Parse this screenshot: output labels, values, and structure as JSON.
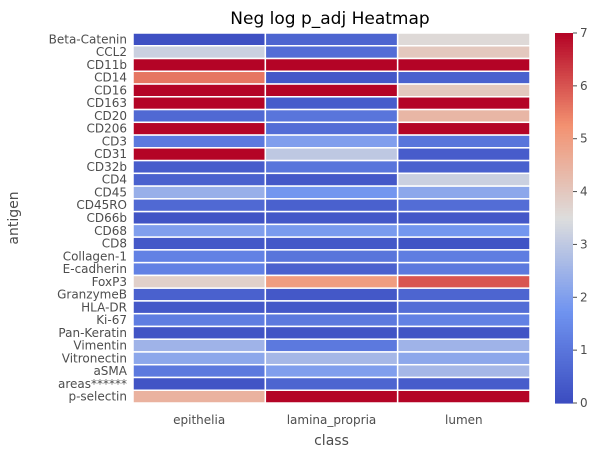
{
  "chart_data": {
    "type": "heatmap",
    "title": "Neg log p_adj Heatmap",
    "xlabel": "class",
    "ylabel": "antigen",
    "columns": [
      "epithelia",
      "lamina_propria",
      "lumen"
    ],
    "rows": [
      "Beta-Catenin",
      "CCL2",
      "CD11b",
      "CD14",
      "CD16",
      "CD163",
      "CD20",
      "CD206",
      "CD3",
      "CD31",
      "CD32b",
      "CD4",
      "CD45",
      "CD45RO",
      "CD66b",
      "CD68",
      "CD8",
      "Collagen-1",
      "E-cadherin",
      "FoxP3",
      "GranzymeB",
      "HLA-DR",
      "Ki-67",
      "Pan-Keratin",
      "Vimentin",
      "Vitronectin",
      "aSMA",
      "areas******",
      "p-selectin"
    ],
    "values": [
      [
        0.1,
        0.6,
        3.6
      ],
      [
        3.2,
        0.8,
        4.0
      ],
      [
        7.0,
        7.0,
        7.0
      ],
      [
        5.6,
        0.3,
        0.5
      ],
      [
        7.0,
        7.0,
        4.0
      ],
      [
        7.0,
        0.4,
        7.0
      ],
      [
        0.7,
        1.0,
        4.4
      ],
      [
        7.0,
        0.8,
        7.0
      ],
      [
        1.1,
        2.0,
        1.0
      ],
      [
        7.0,
        3.0,
        0.4
      ],
      [
        0.4,
        1.0,
        0.5
      ],
      [
        0.5,
        0.3,
        3.2
      ],
      [
        2.4,
        1.8,
        2.2
      ],
      [
        0.7,
        0.5,
        0.8
      ],
      [
        0.2,
        0.3,
        0.3
      ],
      [
        2.0,
        1.9,
        1.8
      ],
      [
        0.3,
        0.3,
        0.2
      ],
      [
        1.3,
        1.0,
        1.2
      ],
      [
        1.3,
        0.5,
        1.1
      ],
      [
        3.8,
        5.0,
        6.0
      ],
      [
        0.5,
        0.3,
        0.6
      ],
      [
        0.3,
        0.3,
        0.8
      ],
      [
        1.2,
        1.1,
        1.3
      ],
      [
        0.2,
        0.2,
        0.2
      ],
      [
        2.5,
        1.1,
        2.5
      ],
      [
        2.2,
        2.6,
        2.2
      ],
      [
        1.1,
        2.0,
        2.6
      ],
      [
        0.2,
        0.6,
        0.4
      ],
      [
        4.5,
        7.0,
        7.0
      ]
    ],
    "zlim": [
      0,
      7
    ],
    "colorbar_ticks": [
      0,
      1,
      2,
      3,
      4,
      5,
      6,
      7
    ],
    "colormap": "coolwarm",
    "colormap_low": "#3b4cc0",
    "colormap_mid": "#dddddd",
    "colormap_high": "#b40426",
    "grid": false,
    "cell_border_color": "#ffffff"
  }
}
